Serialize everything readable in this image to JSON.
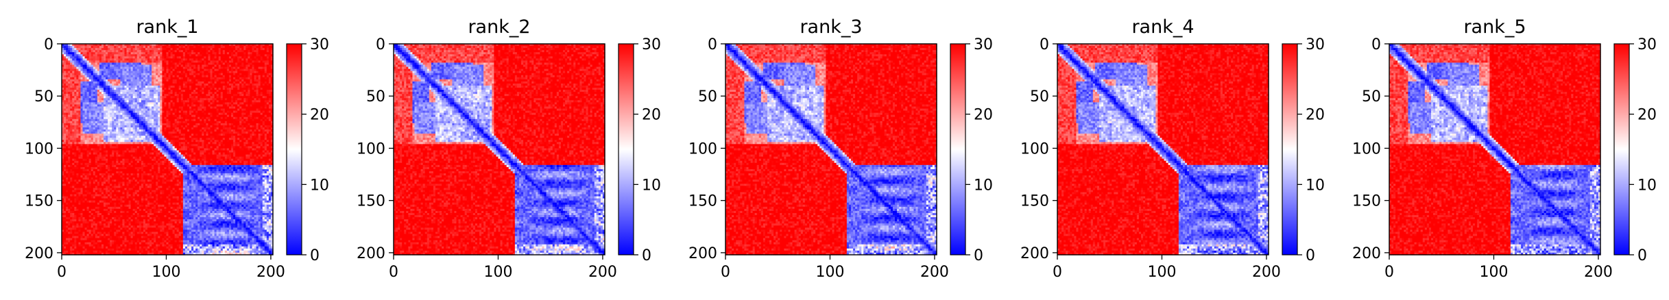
{
  "chart_data": [
    {
      "type": "heatmap",
      "title": "rank_1",
      "x_ticks": [
        "0",
        "100",
        "200"
      ],
      "y_ticks": [
        "0",
        "50",
        "100",
        "150",
        "200"
      ],
      "xlim": [
        0,
        202
      ],
      "ylim": [
        202,
        0
      ],
      "matrix_size": 202,
      "colorbar": {
        "ticks": [
          "0",
          "10",
          "20",
          "30"
        ],
        "min": 0,
        "max": 30,
        "colormap": "bwr"
      },
      "values_description": {
        "diagonal": 0,
        "domain_blocks": [
          {
            "range": [
              0,
              95
            ],
            "value": 12
          },
          {
            "range": [
              115,
              202
            ],
            "value": 6
          }
        ],
        "off_domain": 30
      }
    },
    {
      "type": "heatmap",
      "title": "rank_2",
      "x_ticks": [
        "0",
        "100",
        "200"
      ],
      "y_ticks": [
        "0",
        "50",
        "100",
        "150",
        "200"
      ],
      "xlim": [
        0,
        202
      ],
      "ylim": [
        202,
        0
      ],
      "matrix_size": 202,
      "colorbar": {
        "ticks": [
          "0",
          "10",
          "20",
          "30"
        ],
        "min": 0,
        "max": 30,
        "colormap": "bwr"
      },
      "values_description": {
        "diagonal": 0,
        "domain_blocks": [
          {
            "range": [
              0,
              95
            ],
            "value": 12
          },
          {
            "range": [
              115,
              202
            ],
            "value": 6
          }
        ],
        "off_domain": 30
      }
    },
    {
      "type": "heatmap",
      "title": "rank_3",
      "x_ticks": [
        "0",
        "100",
        "200"
      ],
      "y_ticks": [
        "0",
        "50",
        "100",
        "150",
        "200"
      ],
      "xlim": [
        0,
        202
      ],
      "ylim": [
        202,
        0
      ],
      "matrix_size": 202,
      "colorbar": {
        "ticks": [
          "0",
          "10",
          "20",
          "30"
        ],
        "min": 0,
        "max": 30,
        "colormap": "bwr"
      },
      "values_description": {
        "diagonal": 0,
        "domain_blocks": [
          {
            "range": [
              0,
              95
            ],
            "value": 12
          },
          {
            "range": [
              115,
              202
            ],
            "value": 6
          }
        ],
        "off_domain": 30
      }
    },
    {
      "type": "heatmap",
      "title": "rank_4",
      "x_ticks": [
        "0",
        "100",
        "200"
      ],
      "y_ticks": [
        "0",
        "50",
        "100",
        "150",
        "200"
      ],
      "xlim": [
        0,
        202
      ],
      "ylim": [
        202,
        0
      ],
      "matrix_size": 202,
      "colorbar": {
        "ticks": [
          "0",
          "10",
          "20",
          "30"
        ],
        "min": 0,
        "max": 30,
        "colormap": "bwr"
      },
      "values_description": {
        "diagonal": 0,
        "domain_blocks": [
          {
            "range": [
              0,
              95
            ],
            "value": 12
          },
          {
            "range": [
              115,
              202
            ],
            "value": 6
          }
        ],
        "off_domain": 30
      }
    },
    {
      "type": "heatmap",
      "title": "rank_5",
      "x_ticks": [
        "0",
        "100",
        "200"
      ],
      "y_ticks": [
        "0",
        "50",
        "100",
        "150",
        "200"
      ],
      "xlim": [
        0,
        202
      ],
      "ylim": [
        202,
        0
      ],
      "matrix_size": 202,
      "colorbar": {
        "ticks": [
          "0",
          "10",
          "20",
          "30"
        ],
        "min": 0,
        "max": 30,
        "colormap": "bwr"
      },
      "values_description": {
        "diagonal": 0,
        "domain_blocks": [
          {
            "range": [
              0,
              95
            ],
            "value": 12
          },
          {
            "range": [
              115,
              202
            ],
            "value": 6
          }
        ],
        "off_domain": 30
      }
    }
  ]
}
